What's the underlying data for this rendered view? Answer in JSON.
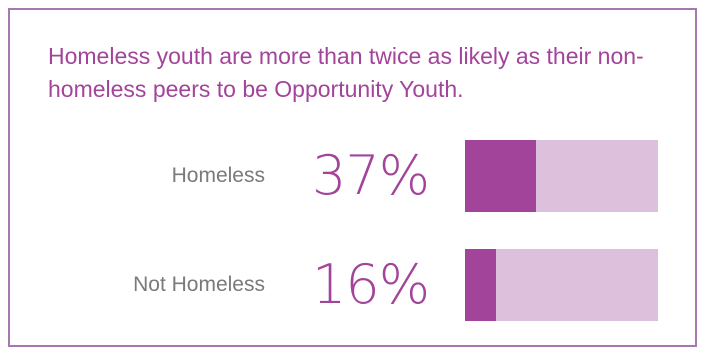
{
  "title": "Homeless youth are more than twice as likely as their non-homeless peers to be Opportunity Youth.",
  "colors": {
    "accent": "#a3449b",
    "remainder": "#dcc0dc",
    "border": "#a678b0",
    "label": "#7a7a7a"
  },
  "chart_data": {
    "type": "bar",
    "orientation": "horizontal",
    "stacked_to_100": true,
    "title": "Homeless youth are more than twice as likely as their non-homeless peers to be Opportunity Youth.",
    "categories": [
      "Homeless",
      "Not Homeless"
    ],
    "values": [
      37,
      16
    ],
    "value_labels": [
      "37%",
      "16%"
    ],
    "xlim": [
      0,
      100
    ],
    "grid": false,
    "legend": "none"
  }
}
